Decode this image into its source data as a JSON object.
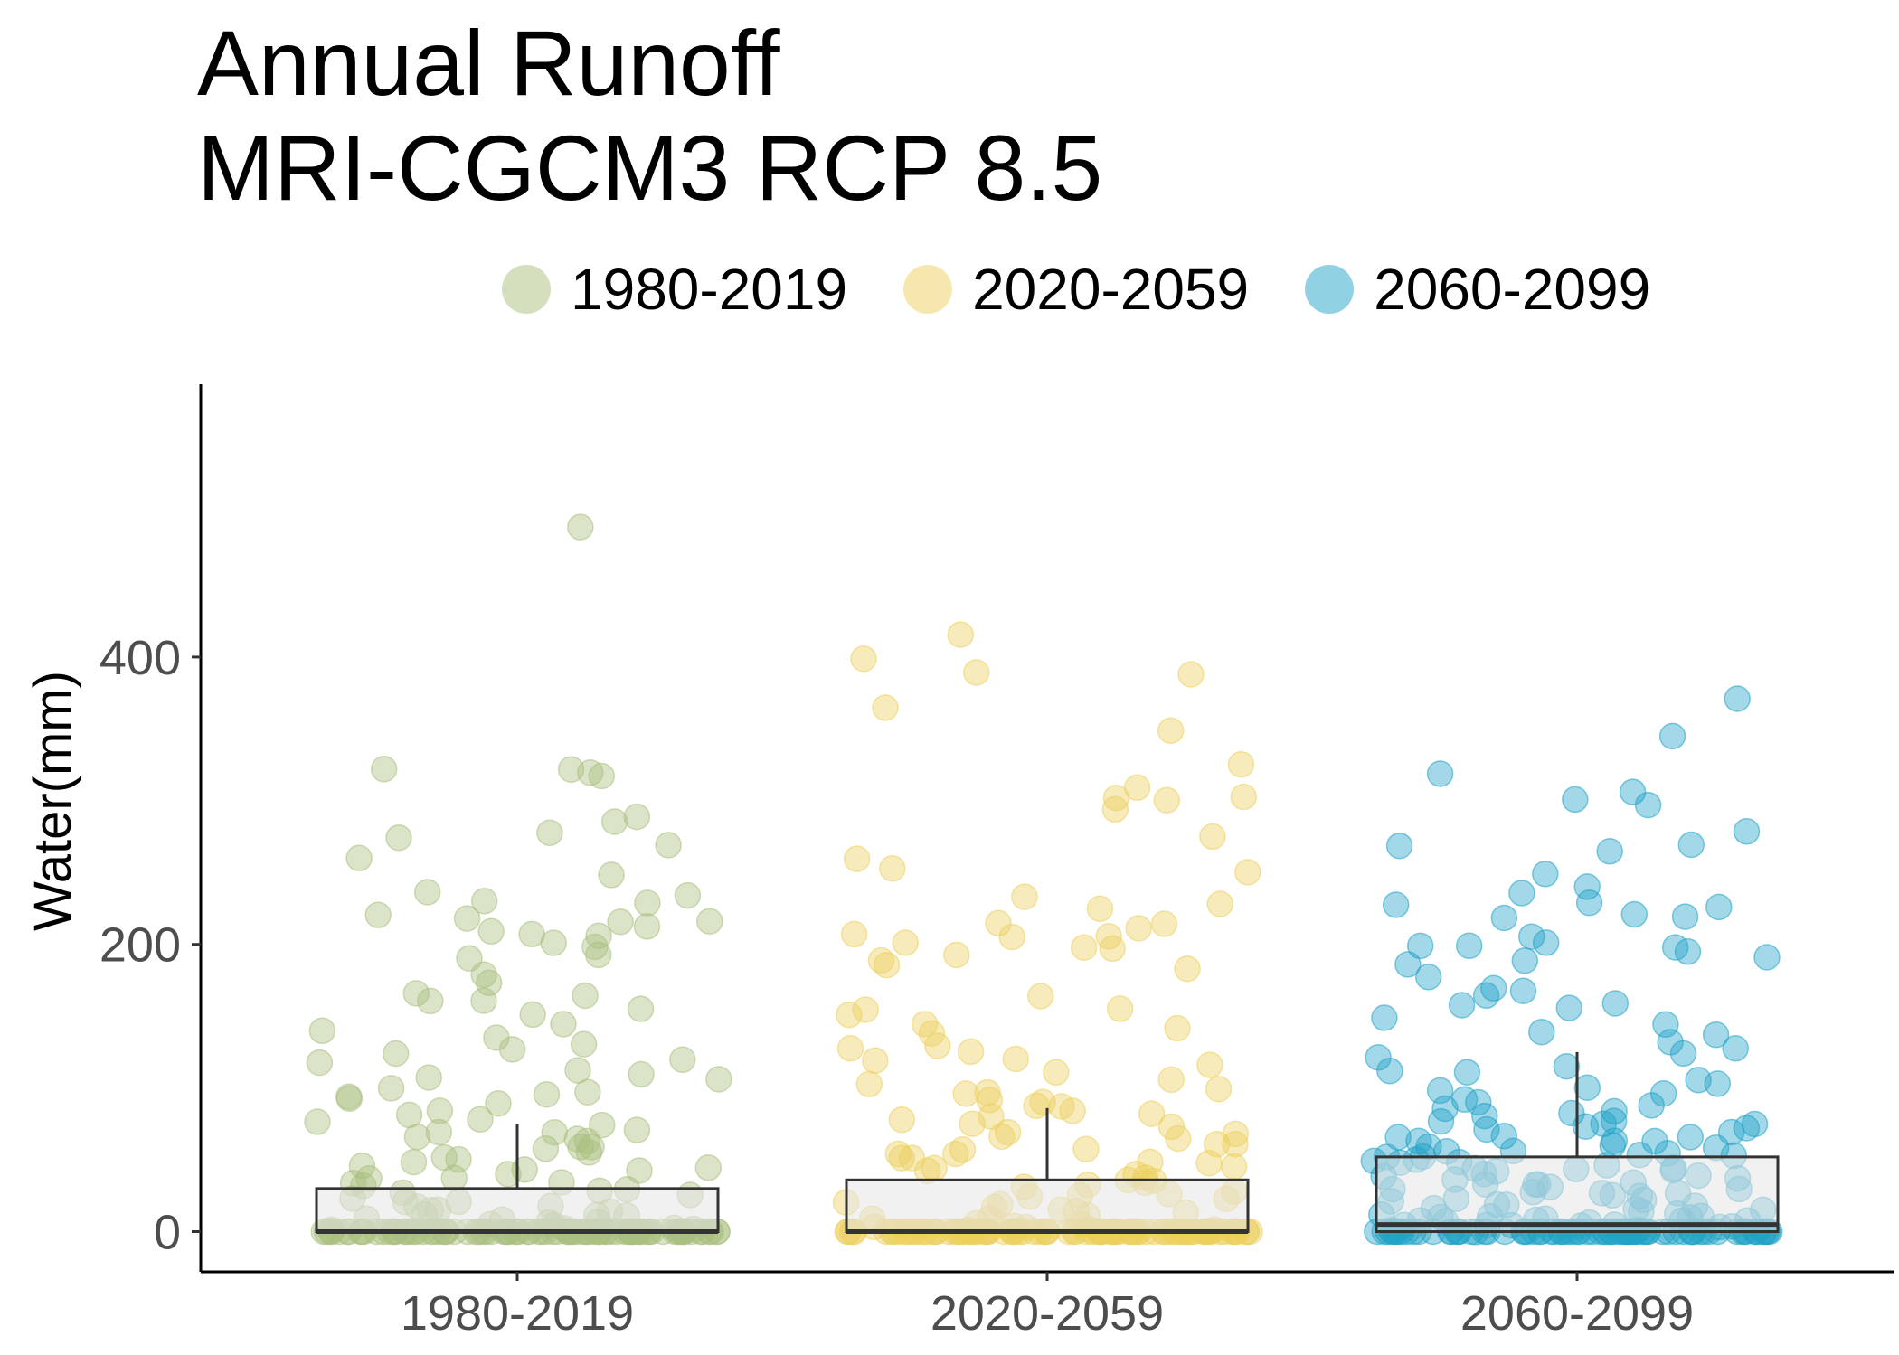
{
  "title_lines": [
    "Annual Runoff",
    "MRI-CGCM3 RCP 8.5"
  ],
  "legend": [
    {
      "label": "1980-2019",
      "color": "#A9BF7E"
    },
    {
      "label": "2020-2059",
      "color": "#EDCF5E"
    },
    {
      "label": "2060-2099",
      "color": "#21A3C7"
    }
  ],
  "chart_data": {
    "type": "scatter",
    "subtype": "jittered points with boxplot overlay",
    "title": "Annual Runoff\nMRI-CGCM3 RCP 8.5",
    "xlabel": "",
    "ylabel": "Water(mm)",
    "categories": [
      "1980-2019",
      "2020-2059",
      "2060-2099"
    ],
    "y_ticks": [
      0,
      200,
      400
    ],
    "ylim": [
      -28,
      590
    ],
    "grid": false,
    "legend_position": "top",
    "series": [
      {
        "name": "1980-2019",
        "color": "#A9BF7E",
        "box": {
          "min": 0,
          "q1": 0,
          "median": 0,
          "q3": 30,
          "whisker_high": 75
        },
        "values": [
          490,
          323,
          320,
          323,
          318,
          285,
          288,
          277,
          275,
          270,
          260,
          248,
          236,
          235,
          230,
          228,
          220,
          218,
          216,
          215,
          210,
          212,
          208,
          205,
          200,
          198,
          192,
          190,
          180,
          172,
          165,
          163,
          160,
          160,
          155,
          152,
          145,
          140,
          135,
          130,
          128,
          124,
          120,
          118,
          112,
          110,
          108,
          106,
          100,
          98,
          96,
          95,
          92,
          90,
          85,
          82,
          78,
          76,
          75,
          72,
          70,
          68,
          66,
          65,
          63,
          60,
          58,
          57,
          55,
          52,
          50,
          48,
          46,
          45,
          44,
          42,
          40,
          38,
          36,
          34,
          33,
          31,
          30,
          28,
          27,
          25,
          24,
          22,
          20,
          19,
          18,
          16,
          15,
          14,
          12,
          11,
          10,
          9,
          8,
          7,
          6,
          5,
          4,
          3,
          2,
          2,
          1,
          1,
          0,
          0,
          0,
          0,
          0,
          0,
          0,
          0,
          0,
          0,
          0,
          0,
          0,
          0,
          0,
          0,
          0,
          0,
          0,
          0,
          0,
          0,
          0,
          0,
          0,
          0,
          0,
          0,
          0,
          0,
          0,
          0,
          0,
          0,
          0,
          0,
          0,
          0,
          0,
          0,
          0,
          0,
          0,
          0,
          0,
          0,
          0,
          0,
          0,
          0,
          0,
          0,
          0,
          0,
          0,
          0,
          0,
          0,
          0,
          0,
          0,
          0,
          0,
          0,
          0,
          0,
          0,
          0,
          0,
          0,
          0,
          0,
          0,
          0,
          0,
          0,
          0,
          0,
          0,
          0,
          0,
          0,
          0,
          0,
          0,
          0,
          0,
          0,
          0,
          0,
          0,
          0
        ]
      },
      {
        "name": "2020-2059",
        "color": "#EDCF5E",
        "box": {
          "min": 0,
          "q1": 0,
          "median": 0,
          "q3": 36,
          "whisker_high": 86
        },
        "values": [
          415,
          398,
          388,
          388,
          366,
          349,
          326,
          310,
          303,
          301,
          300,
          294,
          275,
          260,
          252,
          250,
          232,
          228,
          226,
          215,
          214,
          210,
          208,
          206,
          205,
          200,
          198,
          196,
          192,
          188,
          185,
          182,
          165,
          155,
          155,
          150,
          145,
          142,
          138,
          130,
          127,
          125,
          120,
          118,
          115,
          112,
          105,
          102,
          100,
          98,
          95,
          92,
          90,
          88,
          86,
          85,
          83,
          80,
          78,
          75,
          73,
          70,
          68,
          66,
          65,
          62,
          60,
          58,
          57,
          55,
          53,
          52,
          50,
          48,
          47,
          45,
          44,
          42,
          40,
          38,
          37,
          35,
          33,
          32,
          30,
          28,
          27,
          25,
          24,
          22,
          20,
          18,
          17,
          15,
          14,
          12,
          10,
          9,
          8,
          7,
          6,
          5,
          4,
          3,
          2,
          1,
          1,
          0,
          0,
          0,
          0,
          0,
          0,
          0,
          0,
          0,
          0,
          0,
          0,
          0,
          0,
          0,
          0,
          0,
          0,
          0,
          0,
          0,
          0,
          0,
          0,
          0,
          0,
          0,
          0,
          0,
          0,
          0,
          0,
          0,
          0,
          0,
          0,
          0,
          0,
          0,
          0,
          0,
          0,
          0,
          0,
          0,
          0,
          0,
          0,
          0,
          0,
          0,
          0,
          0,
          0,
          0,
          0,
          0,
          0,
          0,
          0,
          0,
          0,
          0,
          0,
          0,
          0,
          0,
          0,
          0,
          0,
          0,
          0,
          0,
          0,
          0,
          0,
          0,
          0,
          0,
          0,
          0,
          0,
          0,
          0,
          0,
          0,
          0,
          0,
          0,
          0,
          0,
          0,
          0
        ]
      },
      {
        "name": "2060-2099",
        "color": "#21A3C7",
        "box": {
          "min": 0,
          "q1": 0,
          "median": 5,
          "q3": 52,
          "whisker_high": 125
        },
        "values": [
          372,
          345,
          320,
          306,
          300,
          298,
          278,
          270,
          268,
          265,
          248,
          240,
          235,
          230,
          228,
          225,
          222,
          220,
          218,
          205,
          202,
          200,
          200,
          198,
          195,
          192,
          188,
          185,
          178,
          170,
          168,
          165,
          160,
          158,
          155,
          150,
          145,
          140,
          138,
          132,
          128,
          125,
          120,
          115,
          112,
          110,
          105,
          102,
          100,
          98,
          95,
          92,
          90,
          88,
          85,
          84,
          82,
          80,
          78,
          77,
          75,
          74,
          72,
          71,
          70,
          68,
          67,
          66,
          65,
          64,
          63,
          62,
          60,
          59,
          58,
          57,
          56,
          55,
          54,
          53,
          52,
          51,
          50,
          49,
          48,
          47,
          46,
          45,
          44,
          43,
          42,
          41,
          40,
          39,
          38,
          37,
          36,
          35,
          34,
          33,
          32,
          31,
          30,
          29,
          28,
          27,
          26,
          25,
          24,
          23,
          22,
          21,
          20,
          19,
          18,
          17,
          16,
          15,
          14,
          13,
          12,
          11,
          10,
          10,
          9,
          9,
          8,
          8,
          7,
          7,
          6,
          6,
          5,
          5,
          4,
          4,
          3,
          3,
          2,
          2,
          1,
          1,
          1,
          0,
          0,
          0,
          0,
          0,
          0,
          0,
          0,
          0,
          0,
          0,
          0,
          0,
          0,
          0,
          0,
          0,
          0,
          0,
          0,
          0,
          0,
          0,
          0,
          0,
          0,
          0,
          0,
          0,
          0,
          0,
          0,
          0,
          0,
          0,
          0,
          0,
          0,
          0,
          0,
          0,
          0,
          0,
          0,
          0,
          0,
          0,
          0,
          0,
          0,
          0,
          0,
          0,
          0,
          0,
          0,
          0,
          0,
          0,
          0,
          0,
          0,
          0,
          0,
          0,
          0,
          0,
          0,
          0,
          0,
          0,
          0,
          0,
          0,
          0,
          0,
          0,
          0,
          0,
          0,
          0
        ]
      }
    ]
  }
}
